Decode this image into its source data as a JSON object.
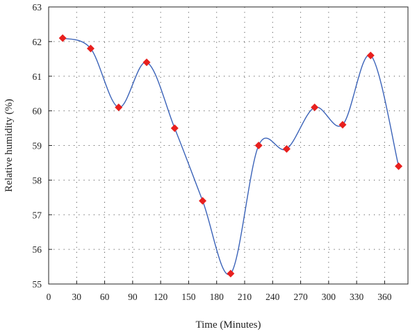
{
  "chart_data": {
    "type": "line",
    "xlabel": "Time (Minutes)",
    "ylabel": "Relative humidity (%)",
    "xlim": [
      0,
      385
    ],
    "ylim": [
      55,
      63
    ],
    "xticks": [
      0,
      30,
      60,
      90,
      120,
      150,
      180,
      210,
      240,
      270,
      300,
      330,
      360
    ],
    "yticks": [
      55,
      56,
      57,
      58,
      59,
      60,
      61,
      62,
      63
    ],
    "grid": true,
    "line_color": "#3a62b8",
    "marker_color": "#e8201e",
    "marker": "diamond",
    "series": [
      {
        "x": [
          15,
          45,
          75,
          105,
          135,
          165,
          195,
          225,
          255,
          285,
          315,
          345,
          375
        ],
        "y": [
          62.1,
          61.8,
          60.1,
          61.4,
          59.5,
          57.4,
          55.3,
          59.0,
          58.9,
          60.1,
          59.6,
          61.6,
          58.4
        ]
      }
    ]
  }
}
